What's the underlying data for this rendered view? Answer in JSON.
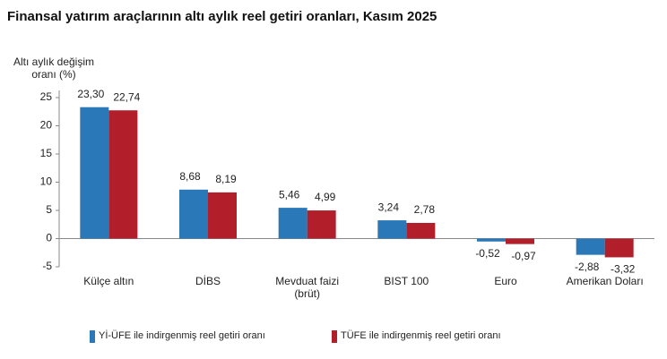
{
  "chart_data": {
    "type": "bar",
    "title": "Finansal yatırım araçlarının altı aylık reel getiri oranları, Kasım 2025",
    "y_label": "Altı aylık değişim oranı (%)",
    "categories": [
      "Külçe altın",
      "DİBS",
      "Mevduat faizi (brüt)",
      "BIST 100",
      "Euro",
      "Amerikan Doları"
    ],
    "series": [
      {
        "name": "Yİ-ÜFE ile indirgenmiş reel getiri oranı",
        "color": "#2a78b8",
        "values": [
          23.3,
          8.68,
          5.46,
          3.24,
          -0.52,
          -2.88
        ],
        "value_labels": [
          "23,30",
          "8,68",
          "5,46",
          "3,24",
          "-0,52",
          "-2,88"
        ]
      },
      {
        "name": "TÜFE ile indirgenmiş reel getiri oranı",
        "color": "#b21f2b",
        "values": [
          22.74,
          8.19,
          4.99,
          2.78,
          -0.97,
          -3.32
        ],
        "value_labels": [
          "22,74",
          "8,19",
          "4,99",
          "2,78",
          "-0,97",
          "-3,32"
        ]
      }
    ],
    "ylim": [
      -5,
      25
    ],
    "yticks": [
      -5,
      0,
      5,
      10,
      15,
      20,
      25
    ]
  }
}
